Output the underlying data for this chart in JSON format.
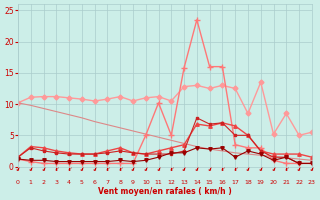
{
  "bg_color": "#cceee8",
  "grid_color": "#aacccc",
  "xlabel": "Vent moyen/en rafales ( km/h )",
  "xlabel_color": "#cc0000",
  "tick_color": "#cc0000",
  "xlim": [
    0,
    23
  ],
  "ylim": [
    0,
    26
  ],
  "yticks": [
    0,
    5,
    10,
    15,
    20,
    25
  ],
  "xticks": [
    0,
    1,
    2,
    3,
    4,
    5,
    6,
    7,
    8,
    9,
    10,
    11,
    12,
    13,
    14,
    15,
    16,
    17,
    18,
    19,
    20,
    21,
    22,
    23
  ],
  "series": [
    {
      "comment": "salmon/light pink line with diamond markers - roughly flat ~11 then rises and falls",
      "x": [
        0,
        1,
        2,
        3,
        4,
        5,
        6,
        7,
        8,
        9,
        10,
        11,
        12,
        13,
        14,
        15,
        16,
        17,
        18,
        19,
        20,
        21,
        22,
        23
      ],
      "y": [
        10.2,
        11.1,
        11.2,
        11.2,
        11.0,
        10.8,
        10.5,
        10.8,
        11.2,
        10.5,
        11.0,
        11.2,
        10.5,
        12.8,
        13.0,
        12.5,
        13.0,
        12.5,
        8.5,
        13.5,
        5.2,
        8.5,
        5.0,
        5.5
      ],
      "color": "#ff9999",
      "marker": "D",
      "markersize": 2.5,
      "linewidth": 1.0
    },
    {
      "comment": "light salmon diagonal line going from ~10 at x=0 down to ~2 at x=23 (no markers)",
      "x": [
        0,
        1,
        2,
        3,
        4,
        5,
        6,
        7,
        8,
        9,
        10,
        11,
        12,
        13,
        14,
        15,
        16,
        17,
        18,
        19,
        20,
        21,
        22,
        23
      ],
      "y": [
        10.2,
        9.8,
        9.3,
        8.8,
        8.3,
        7.8,
        7.2,
        6.7,
        6.2,
        5.7,
        5.2,
        4.7,
        4.2,
        3.7,
        3.2,
        2.8,
        2.5,
        2.2,
        2.0,
        1.8,
        1.6,
        1.4,
        1.2,
        1.0
      ],
      "color": "#dd8888",
      "marker": null,
      "markersize": 0,
      "linewidth": 0.8
    },
    {
      "comment": "bright salmon/orange-pink line with + markers - spikes at 14 to ~23.5",
      "x": [
        0,
        1,
        2,
        3,
        4,
        5,
        6,
        7,
        8,
        9,
        10,
        11,
        12,
        13,
        14,
        15,
        16,
        17,
        18,
        19,
        20,
        21,
        22,
        23
      ],
      "y": [
        1.2,
        0.8,
        0.5,
        0.5,
        0.5,
        0.5,
        0.5,
        0.5,
        0.5,
        0.5,
        5.0,
        10.2,
        5.0,
        15.8,
        23.5,
        16.0,
        16.0,
        3.5,
        3.0,
        3.0,
        1.0,
        0.5,
        0.5,
        0.5
      ],
      "color": "#ff7777",
      "marker": "+",
      "markersize": 4,
      "linewidth": 1.0
    },
    {
      "comment": "medium red line with triangle-up markers - flat around 3 then humps at 13-17",
      "x": [
        0,
        1,
        2,
        3,
        4,
        5,
        6,
        7,
        8,
        9,
        10,
        11,
        12,
        13,
        14,
        15,
        16,
        17,
        18,
        19,
        20,
        21,
        22,
        23
      ],
      "y": [
        1.5,
        3.2,
        3.0,
        2.5,
        2.2,
        2.0,
        2.0,
        2.5,
        3.0,
        2.2,
        2.0,
        2.5,
        3.0,
        3.5,
        6.8,
        6.5,
        7.0,
        6.5,
        5.0,
        2.5,
        2.0,
        2.0,
        2.0,
        1.5
      ],
      "color": "#ee4444",
      "marker": "^",
      "markersize": 2.5,
      "linewidth": 1.0
    },
    {
      "comment": "dark red line with small square markers - flat near 2-3 with peak at 14-16 around 7-8",
      "x": [
        0,
        1,
        2,
        3,
        4,
        5,
        6,
        7,
        8,
        9,
        10,
        11,
        12,
        13,
        14,
        15,
        16,
        17,
        18,
        19,
        20,
        21,
        22,
        23
      ],
      "y": [
        1.5,
        3.0,
        2.5,
        2.2,
        2.0,
        2.0,
        2.0,
        2.2,
        2.5,
        2.2,
        2.0,
        2.0,
        2.0,
        2.5,
        7.8,
        6.8,
        7.0,
        5.0,
        5.0,
        2.5,
        1.5,
        1.5,
        0.5,
        0.5
      ],
      "color": "#cc2222",
      "marker": "s",
      "markersize": 2,
      "linewidth": 0.8
    },
    {
      "comment": "darkest red line with triangle-down markers - near bottom, flat ~1-2",
      "x": [
        0,
        1,
        2,
        3,
        4,
        5,
        6,
        7,
        8,
        9,
        10,
        11,
        12,
        13,
        14,
        15,
        16,
        17,
        18,
        19,
        20,
        21,
        22,
        23
      ],
      "y": [
        1.2,
        1.0,
        1.0,
        0.8,
        0.8,
        0.8,
        0.8,
        0.8,
        1.0,
        0.8,
        1.0,
        1.5,
        2.2,
        2.2,
        3.0,
        2.8,
        3.0,
        1.5,
        2.5,
        2.0,
        1.0,
        1.5,
        0.5,
        0.5
      ],
      "color": "#990000",
      "marker": "v",
      "markersize": 2.5,
      "linewidth": 0.8
    }
  ]
}
